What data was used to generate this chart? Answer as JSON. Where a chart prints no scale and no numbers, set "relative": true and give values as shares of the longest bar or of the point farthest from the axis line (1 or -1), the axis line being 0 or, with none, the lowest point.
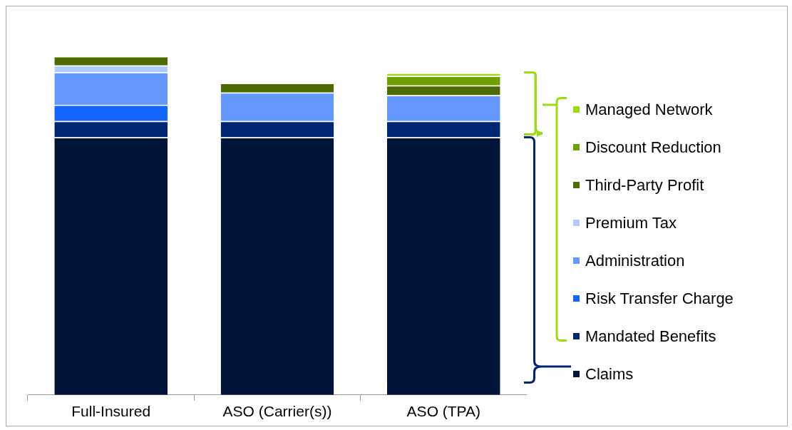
{
  "chart_data": {
    "type": "bar",
    "relative": true,
    "stacked": true,
    "legend": "right",
    "categories": [
      "Full-Insured",
      "ASO (Carrier(s))",
      "ASO (TPA)"
    ],
    "series": [
      {
        "name": "Claims",
        "color": "#00143a",
        "values": [
          0.761,
          0.761,
          0.761
        ]
      },
      {
        "name": "Mandated Benefits",
        "color": "#002673",
        "values": [
          0.048,
          0.048,
          0.048
        ]
      },
      {
        "name": "Risk Transfer Charge",
        "color": "#1464ff",
        "values": [
          0.048,
          0,
          0
        ]
      },
      {
        "name": "Administration",
        "color": "#6699ff",
        "values": [
          0.096,
          0.084,
          0.076
        ]
      },
      {
        "name": "Premium Tax",
        "color": "#b3ccff",
        "values": [
          0.02,
          0,
          0
        ]
      },
      {
        "name": "Third-Party Profit",
        "color": "#4d6b00",
        "values": [
          0.027,
          0.028,
          0.029
        ]
      },
      {
        "name": "Discount Reduction",
        "color": "#6e9e00",
        "values": [
          0,
          0,
          0.028
        ]
      },
      {
        "name": "Managed Network",
        "color": "#99dd11",
        "values": [
          0,
          0,
          0.009
        ]
      }
    ]
  }
}
